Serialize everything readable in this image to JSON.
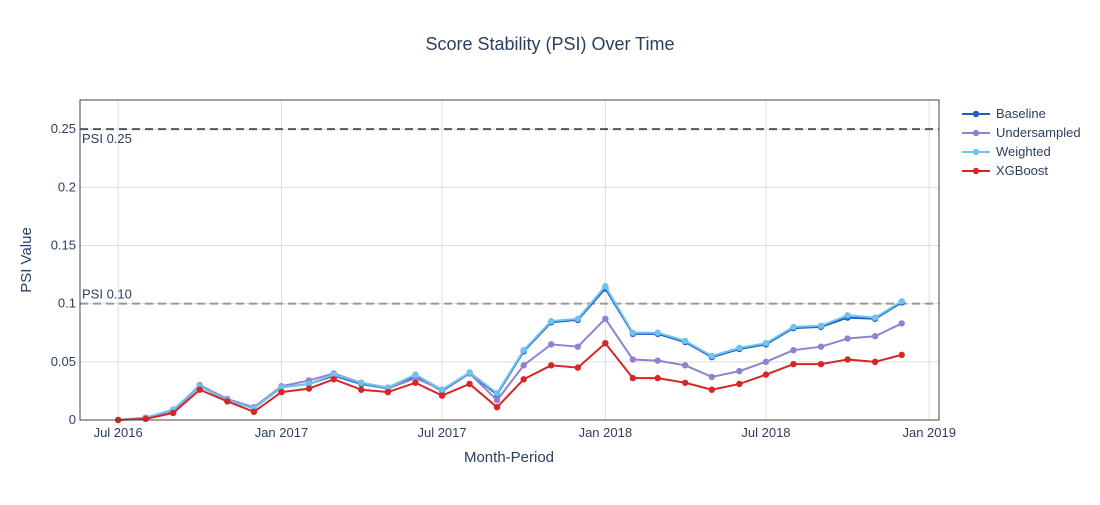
{
  "chart_data": {
    "type": "line",
    "title": "Score Stability (PSI) Over Time",
    "xlabel": "Month-Period",
    "ylabel": "PSI Value",
    "ylim": [
      0,
      0.275
    ],
    "xlim": [
      "2016-05-19",
      "2019-01-12"
    ],
    "x_ticks": [
      {
        "date": "2016-07-01",
        "label": "Jul 2016"
      },
      {
        "date": "2017-01-01",
        "label": "Jan 2017"
      },
      {
        "date": "2017-07-01",
        "label": "Jul 2017"
      },
      {
        "date": "2018-01-01",
        "label": "Jan 2018"
      },
      {
        "date": "2018-07-01",
        "label": "Jul 2018"
      },
      {
        "date": "2019-01-01",
        "label": "Jan 2019"
      }
    ],
    "y_ticks": [
      {
        "value": 0,
        "label": "0"
      },
      {
        "value": 0.05,
        "label": "0.05"
      },
      {
        "value": 0.1,
        "label": "0.1"
      },
      {
        "value": 0.15,
        "label": "0.15"
      },
      {
        "value": 0.2,
        "label": "0.2"
      },
      {
        "value": 0.25,
        "label": "0.25"
      }
    ],
    "grid": true,
    "legend_position": "right",
    "x": [
      "2016-07-01",
      "2016-08-01",
      "2016-09-01",
      "2016-10-01",
      "2016-11-01",
      "2016-12-01",
      "2017-01-01",
      "2017-02-01",
      "2017-03-01",
      "2017-04-01",
      "2017-05-01",
      "2017-06-01",
      "2017-07-01",
      "2017-08-01",
      "2017-09-01",
      "2017-10-01",
      "2017-11-01",
      "2017-12-01",
      "2018-01-01",
      "2018-02-01",
      "2018-03-01",
      "2018-04-01",
      "2018-05-01",
      "2018-06-01",
      "2018-07-01",
      "2018-08-01",
      "2018-09-01",
      "2018-10-01",
      "2018-11-01",
      "2018-12-01"
    ],
    "series": [
      {
        "name": "Baseline",
        "color": "#1f5fbf",
        "values": [
          0.0,
          0.002,
          0.008,
          0.029,
          0.017,
          0.01,
          0.028,
          0.031,
          0.038,
          0.031,
          0.027,
          0.038,
          0.025,
          0.04,
          0.022,
          0.059,
          0.084,
          0.086,
          0.113,
          0.074,
          0.074,
          0.067,
          0.054,
          0.061,
          0.065,
          0.079,
          0.08,
          0.088,
          0.087,
          0.101
        ]
      },
      {
        "name": "Undersampled",
        "color": "#9182d0",
        "values": [
          0.0,
          0.002,
          0.008,
          0.03,
          0.018,
          0.011,
          0.029,
          0.034,
          0.04,
          0.032,
          0.027,
          0.036,
          0.026,
          0.04,
          0.017,
          0.047,
          0.065,
          0.063,
          0.087,
          0.052,
          0.051,
          0.047,
          0.037,
          0.042,
          0.05,
          0.06,
          0.063,
          0.07,
          0.072,
          0.083
        ]
      },
      {
        "name": "Weighted",
        "color": "#6ec4ee",
        "values": [
          0.0,
          0.002,
          0.009,
          0.029,
          0.017,
          0.01,
          0.028,
          0.031,
          0.039,
          0.032,
          0.028,
          0.039,
          0.026,
          0.041,
          0.023,
          0.06,
          0.085,
          0.087,
          0.115,
          0.075,
          0.075,
          0.068,
          0.055,
          0.062,
          0.066,
          0.08,
          0.081,
          0.09,
          0.088,
          0.102
        ]
      },
      {
        "name": "XGBoost",
        "color": "#d62728",
        "values": [
          0.0,
          0.001,
          0.006,
          0.026,
          0.016,
          0.007,
          0.024,
          0.027,
          0.035,
          0.026,
          0.024,
          0.032,
          0.021,
          0.031,
          0.011,
          0.035,
          0.047,
          0.045,
          0.066,
          0.036,
          0.036,
          0.032,
          0.026,
          0.031,
          0.039,
          0.048,
          0.048,
          0.052,
          0.05,
          0.056
        ]
      }
    ],
    "reference_lines": [
      {
        "value": 0.25,
        "label": "PSI 0.25",
        "color": "#555555"
      },
      {
        "value": 0.1,
        "label": "PSI 0.10",
        "color": "#999999"
      }
    ]
  }
}
